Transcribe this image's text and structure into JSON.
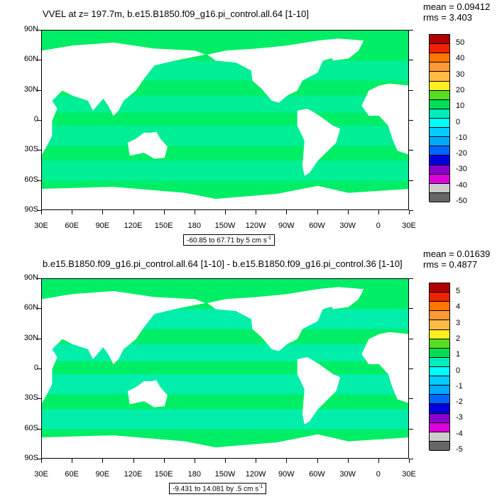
{
  "panels": [
    {
      "title": "VVEL at z= 197.7m, b.e15.B1850.f09_g16.pi_control.all.64 [1-10]",
      "mean": "mean = 0.09412",
      "rms": "rms = 3.403",
      "range": "-60.85 to 67.71 by 5 cm s",
      "range_sup": "-1",
      "colorbar_labels": [
        "50",
        "40",
        "30",
        "20",
        "10",
        "0",
        "-10",
        "-20",
        "-30",
        "-40",
        "-50"
      ]
    },
    {
      "title": "b.e15.B1850.f09_g16.pi_control.all.64 [1-10] - b.e15.B1850.f09_g16.pi_control.36 [1-10]",
      "mean": "mean = 0.01639",
      "rms": "rms = 0.4877",
      "range": "-9.431 to 14.081 by .5 cm s",
      "range_sup": "-1",
      "colorbar_labels": [
        "5",
        "4",
        "3",
        "2",
        "1",
        "0",
        "-1",
        "-2",
        "-3",
        "-4",
        "-5"
      ]
    }
  ],
  "axes": {
    "lat_labels": [
      "90N",
      "60N",
      "30N",
      "0",
      "30S",
      "60S",
      "90S"
    ],
    "lon_labels": [
      "30E",
      "60E",
      "90E",
      "120E",
      "150E",
      "180",
      "150W",
      "120W",
      "90W",
      "60W",
      "30W",
      "0",
      "30E"
    ]
  },
  "colors": {
    "colorbar": [
      "#b00000",
      "#ee2200",
      "#ff7700",
      "#ff9933",
      "#ffbb44",
      "#ffee22",
      "#55dd22",
      "#00dd55",
      "#00eebb",
      "#00ffff",
      "#00ccff",
      "#00aaff",
      "#0066ff",
      "#0000dd",
      "#8800cc",
      "#dd00dd",
      "#cccccc",
      "#666666"
    ],
    "land": "#ffffff",
    "ocean_main": "#00ee66",
    "ocean_light": "#00eebb"
  }
}
